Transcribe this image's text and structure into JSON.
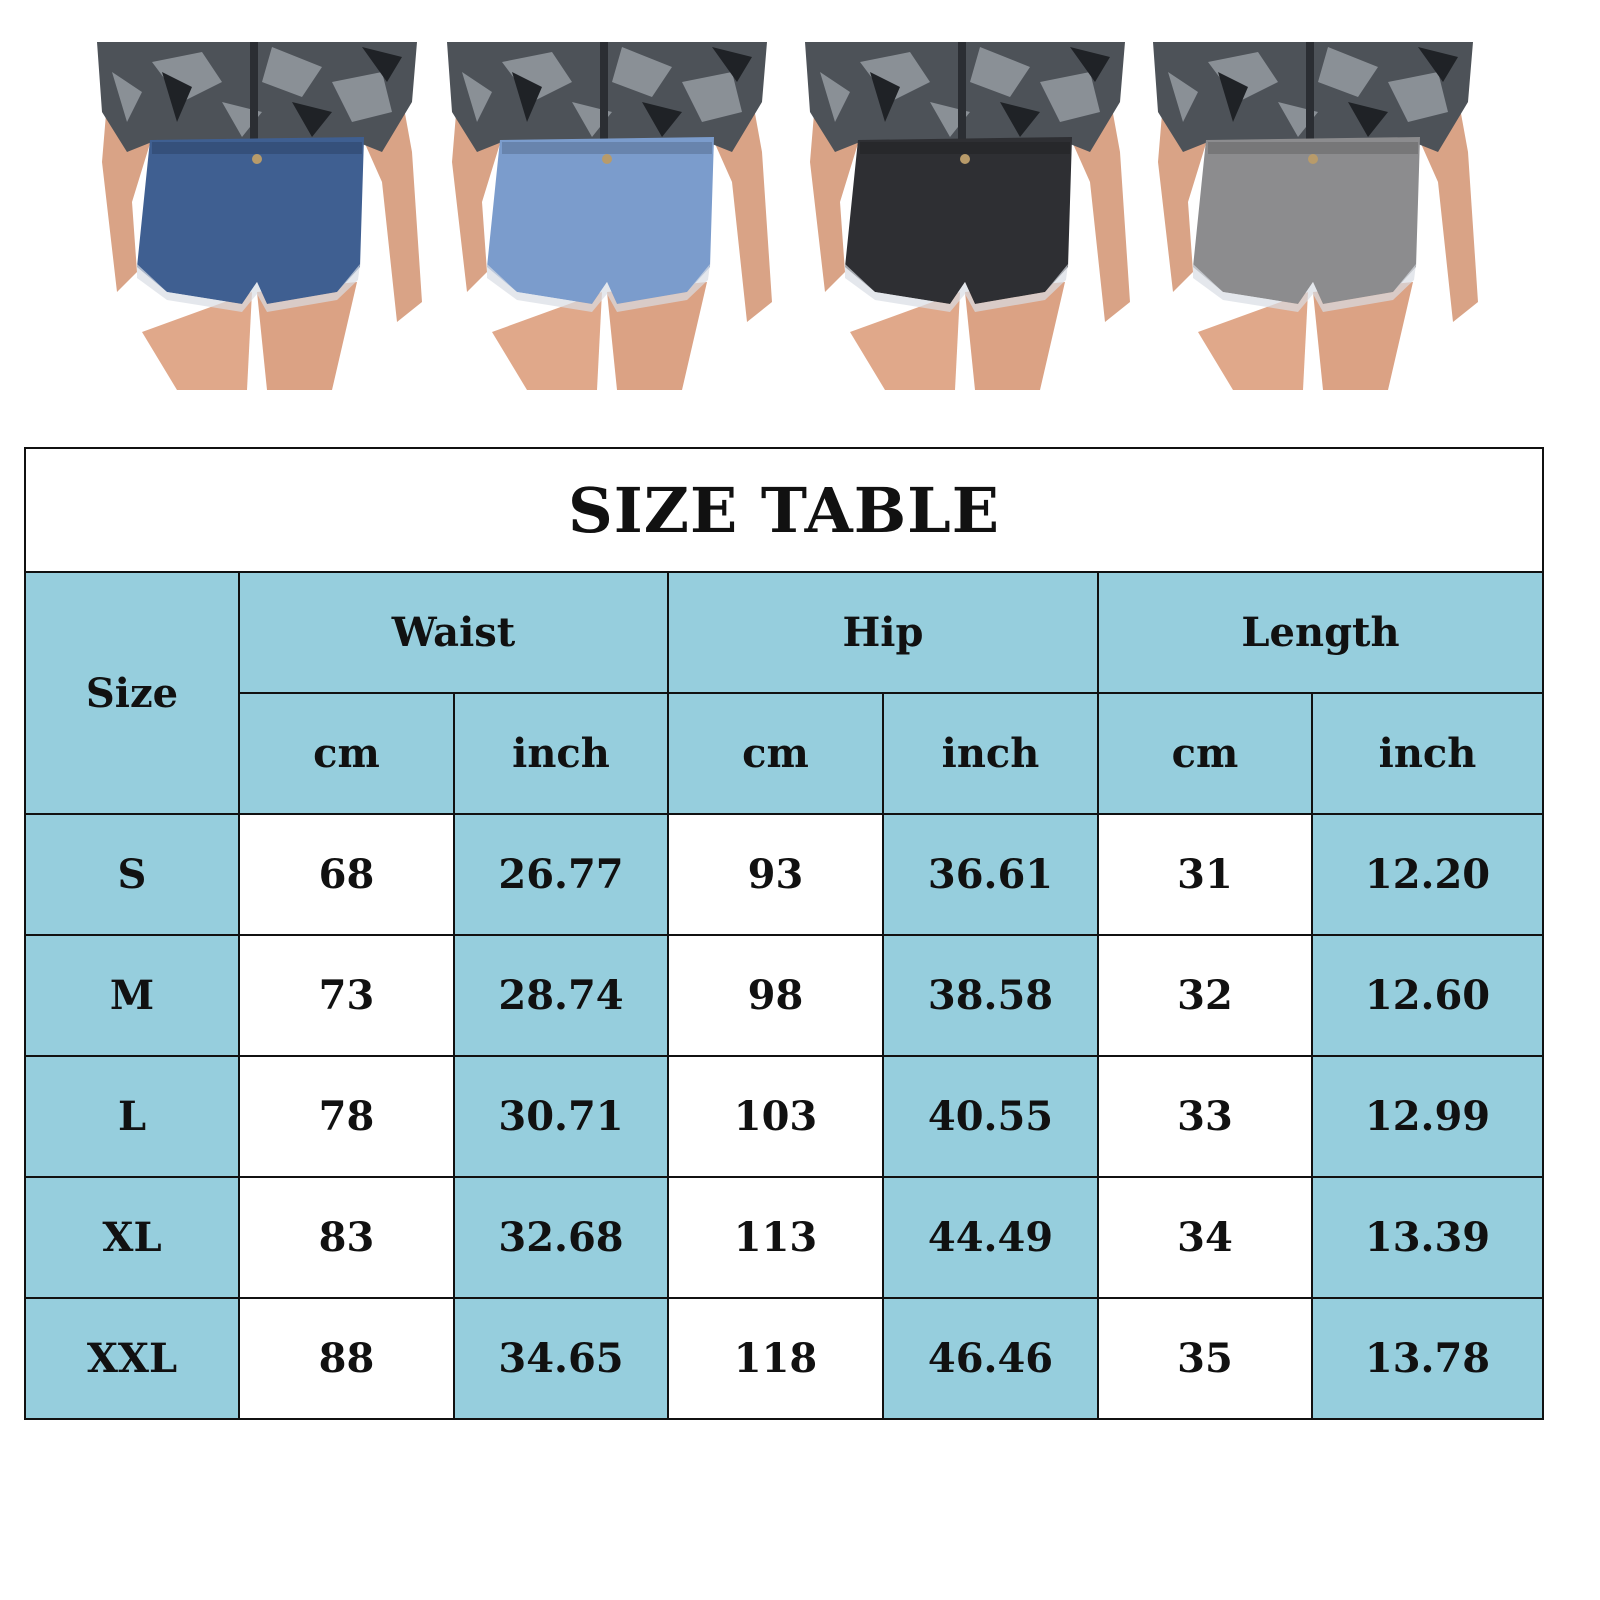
{
  "photos": [
    {
      "color_name": "dark-blue",
      "shorts_color": "#3f5f91"
    },
    {
      "color_name": "light-blue",
      "shorts_color": "#7b9ccc"
    },
    {
      "color_name": "black",
      "shorts_color": "#2e2f33"
    },
    {
      "color_name": "grey",
      "shorts_color": "#8c8c8e"
    }
  ],
  "table": {
    "title": "SIZE TABLE",
    "size_header": "Size",
    "groups": [
      "Waist",
      "Hip",
      "Length"
    ],
    "units": [
      "cm",
      "inch",
      "cm",
      "inch",
      "cm",
      "inch"
    ],
    "rows": [
      {
        "size": "S",
        "values": [
          "68",
          "26.77",
          "93",
          "36.61",
          "31",
          "12.20"
        ]
      },
      {
        "size": "M",
        "values": [
          "73",
          "28.74",
          "98",
          "38.58",
          "32",
          "12.60"
        ]
      },
      {
        "size": "L",
        "values": [
          "78",
          "30.71",
          "103",
          "40.55",
          "33",
          "12.99"
        ]
      },
      {
        "size": "XL",
        "values": [
          "83",
          "32.68",
          "113",
          "44.49",
          "34",
          "13.39"
        ]
      },
      {
        "size": "XXL",
        "values": [
          "88",
          "34.65",
          "118",
          "46.46",
          "35",
          "13.78"
        ]
      }
    ]
  },
  "colors": {
    "header_fill": "#96cedd",
    "border": "#111111"
  }
}
